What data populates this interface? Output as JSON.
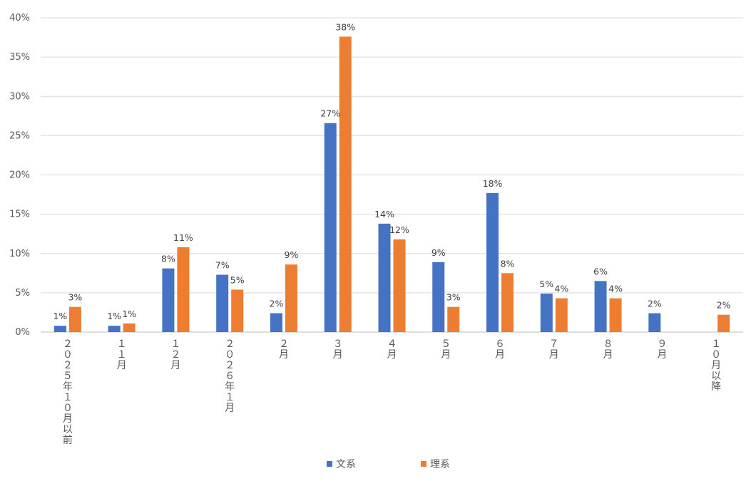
{
  "chart_data": {
    "type": "bar",
    "categories": [
      "２０２５年１０月以前",
      "１１月",
      "１２月",
      "２０２６年１月",
      "２月",
      "３月",
      "４月",
      "５月",
      "６月",
      "７月",
      "８月",
      "９月",
      "１０月以降"
    ],
    "series": [
      {
        "name": "文系",
        "color": "#4472C4",
        "values": [
          0.8,
          0.8,
          8.1,
          7.3,
          2.4,
          26.6,
          13.8,
          8.9,
          17.7,
          4.9,
          6.5,
          2.4,
          null
        ],
        "labels": [
          "1%",
          "1%",
          "8%",
          "7%",
          "2%",
          "27%",
          "14%",
          "9%",
          "18%",
          "5%",
          "6%",
          "2%",
          ""
        ]
      },
      {
        "name": "理系",
        "color": "#ED7D31",
        "values": [
          3.2,
          1.1,
          10.8,
          5.4,
          8.6,
          37.6,
          11.8,
          3.2,
          7.5,
          4.3,
          4.3,
          null,
          2.2
        ],
        "labels": [
          "3%",
          "1%",
          "11%",
          "5%",
          "9%",
          "38%",
          "12%",
          "3%",
          "8%",
          "4%",
          "4%",
          "",
          "2%"
        ]
      }
    ],
    "yticks": [
      "0%",
      "5%",
      "10%",
      "15%",
      "20%",
      "25%",
      "30%",
      "35%",
      "40%"
    ],
    "ylim": [
      0,
      40
    ],
    "grid": true,
    "legend_position": "bottom",
    "title": "",
    "xlabel": "",
    "ylabel": ""
  }
}
